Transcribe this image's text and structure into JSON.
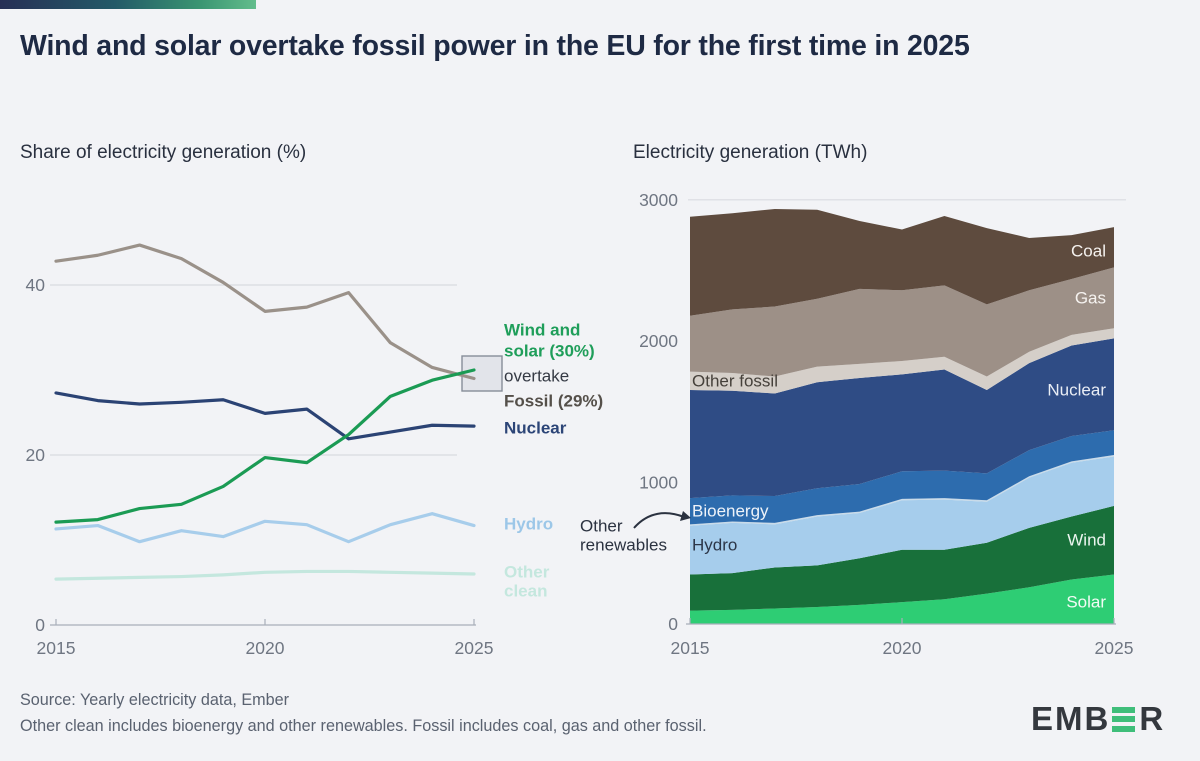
{
  "page": {
    "title": "Wind and solar overtake fossil power in the EU for the first time in 2025",
    "source": "Source: Yearly electricity data, Ember",
    "footnote": "Other clean includes bioenergy and other renewables. Fossil includes coal, gas and other fossil.",
    "logo": {
      "prefix": "EMB",
      "green_letter": "E",
      "suffix": "R"
    },
    "colors": {
      "background": "#f2f3f6",
      "title_text": "#1e2a44",
      "accent_green": "#1f9e5a"
    }
  },
  "chart_data": [
    {
      "type": "line",
      "title": "Share of electricity generation (%)",
      "xlabel": "",
      "ylabel": "Share of electricity generation (%)",
      "x": [
        2015,
        2016,
        2017,
        2018,
        2019,
        2020,
        2021,
        2022,
        2023,
        2024,
        2025
      ],
      "xticks": [
        2015,
        2020,
        2025
      ],
      "yticks": [
        0,
        20,
        40
      ],
      "grid_y": [
        20,
        40
      ],
      "ylim": [
        0,
        47
      ],
      "legend_position": "right-annotations",
      "series": [
        {
          "name": "Other clean",
          "color": "#c4e7de",
          "values": [
            5.4,
            5.5,
            5.6,
            5.7,
            5.9,
            6.2,
            6.3,
            6.3,
            6.2,
            6.1,
            6.0
          ]
        },
        {
          "name": "Hydro",
          "color": "#a7cdeb",
          "values": [
            11.3,
            11.7,
            9.8,
            11.1,
            10.4,
            12.2,
            11.8,
            9.8,
            11.8,
            13.1,
            11.7
          ]
        },
        {
          "name": "Fossil",
          "color": "#9a9189",
          "values": [
            42.8,
            43.5,
            44.7,
            43.1,
            40.3,
            36.9,
            37.4,
            39.1,
            33.2,
            30.3,
            29.0
          ]
        },
        {
          "name": "Nuclear",
          "color": "#2b4374",
          "values": [
            27.3,
            26.4,
            26.0,
            26.2,
            26.5,
            24.9,
            25.4,
            21.9,
            22.7,
            23.5,
            23.4
          ]
        },
        {
          "name": "Wind and solar",
          "color": "#1b9b54",
          "values": [
            12.1,
            12.4,
            13.7,
            14.2,
            16.3,
            19.7,
            19.1,
            22.4,
            26.9,
            28.8,
            30.0
          ]
        }
      ],
      "annotations": {
        "labels": [
          {
            "text": "Wind and",
            "x": 504,
            "y": 330,
            "color": "#1f9e5a",
            "bold": true
          },
          {
            "text": "solar (30%)",
            "x": 504,
            "y": 351,
            "color": "#1f9e5a",
            "bold": true
          },
          {
            "text": "overtake",
            "x": 504,
            "y": 376,
            "color": "#353a44",
            "bold": false
          },
          {
            "text": "Fossil (29%)",
            "x": 504,
            "y": 401,
            "color": "#55504a",
            "bold": true
          },
          {
            "text": "Nuclear",
            "x": 504,
            "y": 428,
            "color": "#2c4577",
            "bold": true
          },
          {
            "text": "Hydro",
            "x": 504,
            "y": 524,
            "color": "#9cc7e8",
            "bold": true
          },
          {
            "text": "Other",
            "x": 504,
            "y": 572,
            "color": "#c4e7de",
            "bold": true
          },
          {
            "text": "clean",
            "x": 504,
            "y": 591,
            "color": "#c4e7de",
            "bold": true
          }
        ],
        "highlight_box": {
          "x": 462,
          "y": 356,
          "width": 40,
          "height": 35
        }
      }
    },
    {
      "type": "area",
      "title": "Electricity generation (TWh)",
      "xlabel": "",
      "ylabel": "Electricity generation (TWh)",
      "x": [
        2015,
        2016,
        2017,
        2018,
        2019,
        2020,
        2021,
        2022,
        2023,
        2024,
        2025
      ],
      "xticks": [
        2015,
        2020,
        2025
      ],
      "yticks": [
        0,
        1000,
        2000,
        3000
      ],
      "grid_y": [
        3000
      ],
      "ylim": [
        0,
        3000
      ],
      "stack_order": "bottom-to-top",
      "series": [
        {
          "name": "Solar",
          "color": "#2ecd74",
          "values": [
            95,
            100,
            110,
            120,
            135,
            155,
            175,
            215,
            260,
            315,
            350
          ]
        },
        {
          "name": "Wind",
          "color": "#18703a",
          "values": [
            255,
            260,
            290,
            295,
            330,
            370,
            350,
            360,
            420,
            445,
            485
          ]
        },
        {
          "name": "Hydro",
          "color": "#a6cdec",
          "values": [
            345,
            355,
            305,
            345,
            320,
            350,
            355,
            290,
            355,
            380,
            350
          ]
        },
        {
          "name": "Other renewables",
          "color": "#c9dbe9",
          "values": [
            10,
            10,
            10,
            10,
            10,
            10,
            10,
            10,
            10,
            10,
            10
          ]
        },
        {
          "name": "Bioenergy",
          "color": "#2d6cae",
          "values": [
            185,
            185,
            190,
            190,
            195,
            195,
            195,
            190,
            185,
            180,
            175
          ]
        },
        {
          "name": "Nuclear",
          "color": "#2f4c85",
          "values": [
            765,
            740,
            725,
            750,
            750,
            685,
            715,
            590,
            615,
            640,
            650
          ]
        },
        {
          "name": "Other fossil",
          "color": "#d5cfc9",
          "values": [
            130,
            125,
            120,
            110,
            100,
            95,
            90,
            95,
            80,
            75,
            72
          ]
        },
        {
          "name": "Gas",
          "color": "#9d9087",
          "values": [
            395,
            450,
            495,
            480,
            530,
            500,
            505,
            510,
            435,
            395,
            430
          ]
        },
        {
          "name": "Coal",
          "color": "#5e4b3e",
          "values": [
            700,
            680,
            690,
            630,
            480,
            430,
            490,
            540,
            370,
            310,
            285
          ]
        }
      ],
      "annotations": {
        "labels": [
          {
            "text": "Coal",
            "x": 1106,
            "y": 251,
            "color": "#f5f2ef",
            "anchor": "end"
          },
          {
            "text": "Gas",
            "x": 1106,
            "y": 298,
            "color": "#f5f2ef",
            "anchor": "end"
          },
          {
            "text": "Other fossil",
            "x": 692,
            "y": 381,
            "color": "#46413b",
            "anchor": "start"
          },
          {
            "text": "Nuclear",
            "x": 1106,
            "y": 390,
            "color": "#e9edf5",
            "anchor": "end"
          },
          {
            "text": "Bioenergy",
            "x": 692,
            "y": 511,
            "color": "#eef3f9",
            "anchor": "start"
          },
          {
            "text": "Hydro",
            "x": 692,
            "y": 545,
            "color": "#2c3648",
            "anchor": "start"
          },
          {
            "text": "Wind",
            "x": 1106,
            "y": 540,
            "color": "#ebf5ef",
            "anchor": "end"
          },
          {
            "text": "Solar",
            "x": 1106,
            "y": 602,
            "color": "#f2fbf5",
            "anchor": "end"
          }
        ],
        "callout": {
          "lines": [
            "Other",
            "renewables"
          ],
          "x": 580,
          "y1": 526,
          "y2": 545,
          "color": "#2b3240",
          "arrow_from": [
            634,
            528
          ],
          "arrow_to": [
            684,
            517
          ]
        }
      }
    }
  ]
}
